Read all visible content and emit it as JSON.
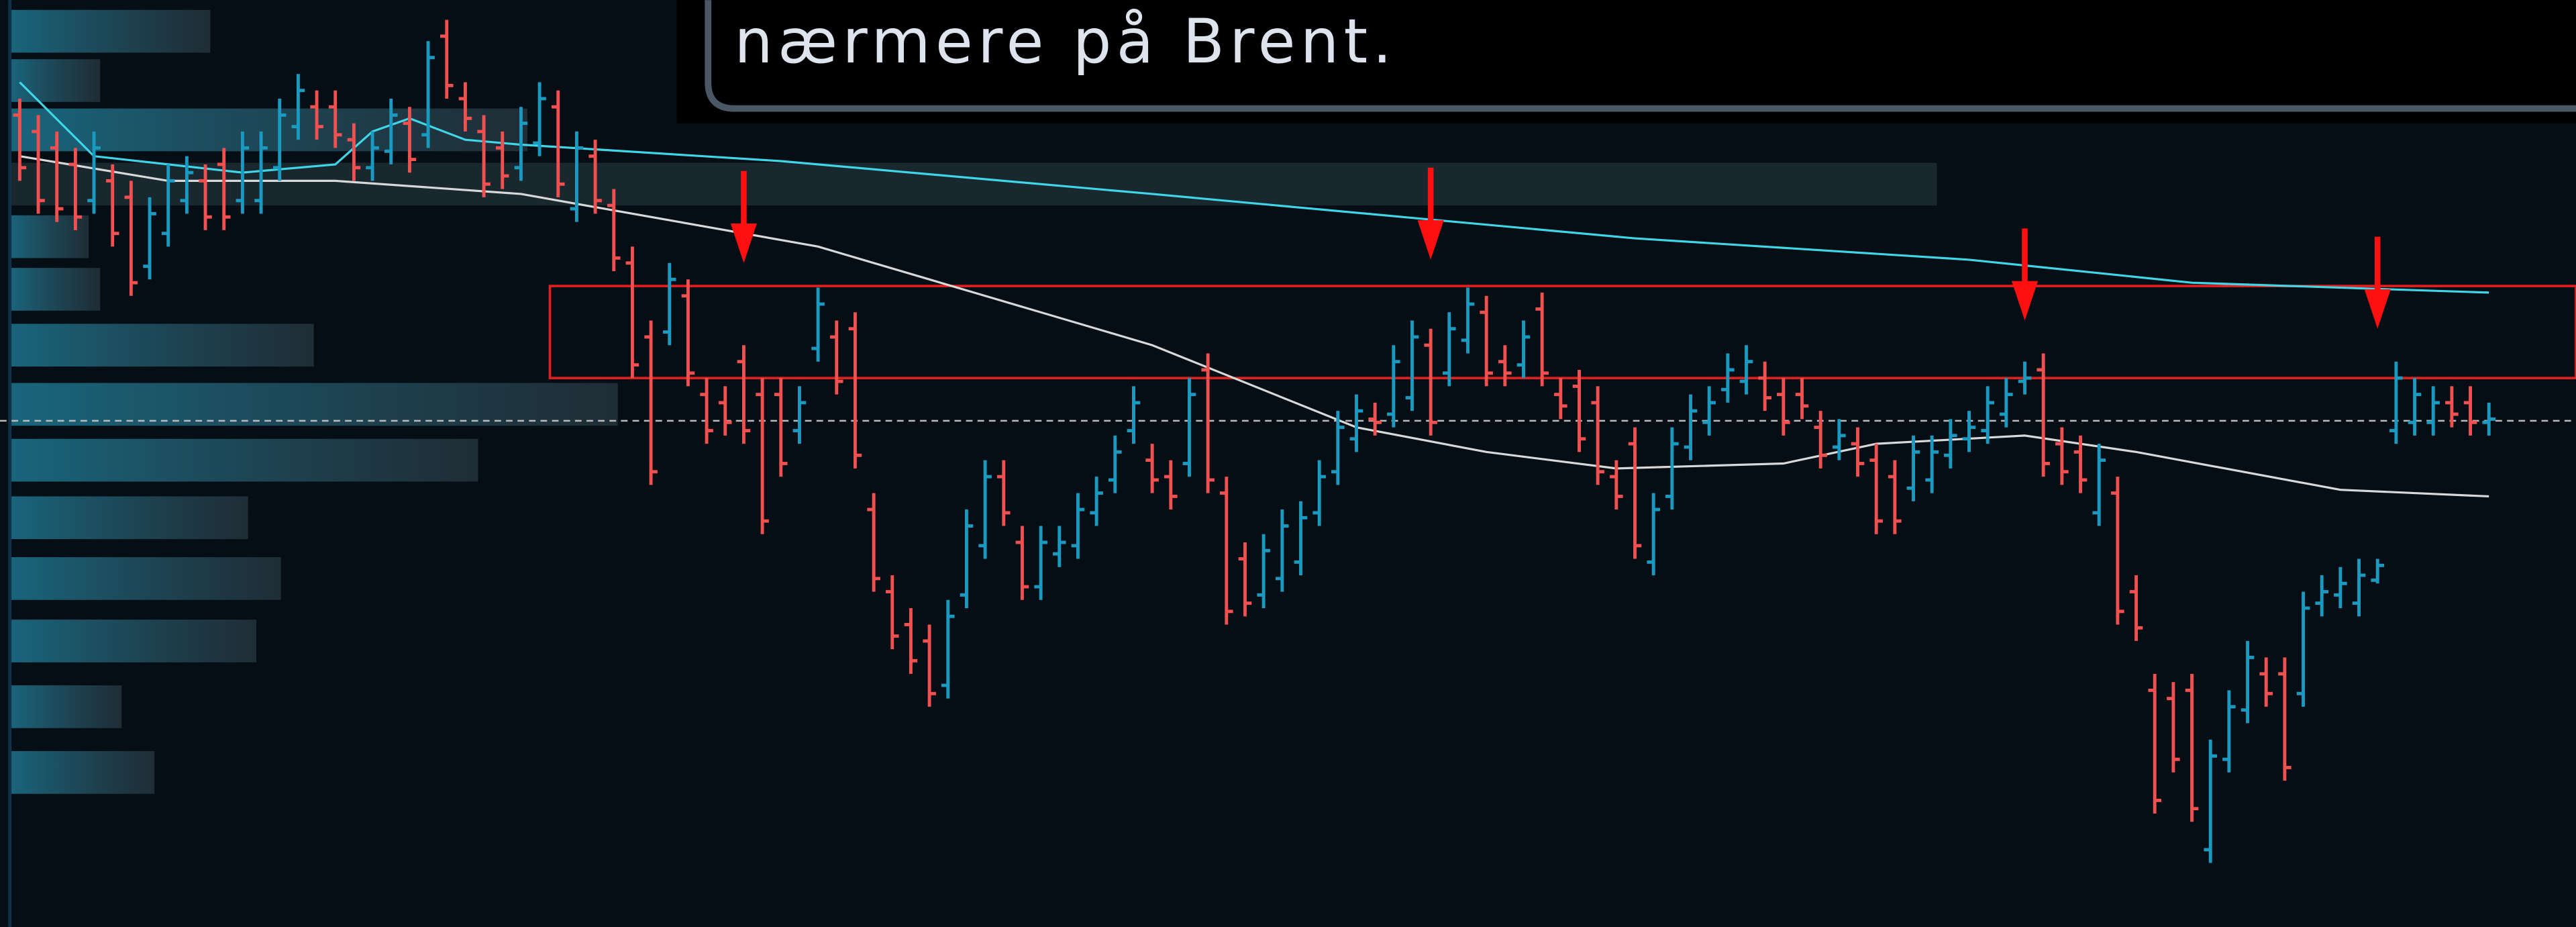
{
  "chart_data": {
    "type": "ohlc",
    "up_color": "#1a9ac0",
    "down_color": "#f05050",
    "ylim": [
      0,
      564
    ],
    "xlim": [
      0,
      133
    ],
    "open": [
      494,
      484,
      474,
      464,
      442,
      454,
      444,
      402,
      422,
      442,
      454,
      464,
      442,
      442,
      462,
      487,
      499,
      499,
      479,
      462,
      472,
      489,
      482,
      542,
      504,
      484,
      474,
      462,
      477,
      499,
      437,
      469,
      439,
      404,
      359,
      362,
      384,
      324,
      319,
      344,
      324,
      324,
      302,
      352,
      359,
      364,
      254,
      204,
      184,
      174,
      147,
      202,
      232,
      274,
      234,
      207,
      227,
      232,
      252,
      272,
      302,
      284,
      274,
      282,
      339,
      264,
      224,
      202,
      212,
      222,
      252,
      277,
      297,
      309,
      312,
      322,
      354,
      337,
      357,
      374,
      344,
      342,
      376,
      324,
      329,
      319,
      274,
      294,
      222,
      262,
      292,
      307,
      327,
      332,
      334,
      324,
      324,
      304,
      292,
      294,
      284,
      274,
      267,
      272,
      287,
      297,
      302,
      312,
      332,
      339,
      294,
      289,
      252,
      264,
      204,
      144,
      139,
      144,
      47,
      102,
      132,
      154,
      154,
      142,
      197,
      202,
      197,
      211,
      302,
      307,
      307,
      319,
      319,
      307
    ],
    "high": [
      504,
      494,
      484,
      474,
      484,
      464,
      454,
      444,
      464,
      469,
      464,
      474,
      484,
      484,
      504,
      519,
      509,
      509,
      489,
      484,
      504,
      499,
      539,
      552,
      514,
      494,
      484,
      499,
      514,
      509,
      484,
      479,
      449,
      414,
      369,
      404,
      394,
      334,
      329,
      354,
      334,
      334,
      329,
      389,
      369,
      374,
      264,
      214,
      194,
      184,
      199,
      254,
      284,
      284,
      244,
      244,
      244,
      264,
      274,
      299,
      329,
      294,
      284,
      334,
      349,
      274,
      234,
      239,
      254,
      259,
      284,
      314,
      324,
      319,
      354,
      369,
      364,
      374,
      389,
      384,
      354,
      369,
      386,
      334,
      339,
      329,
      284,
      304,
      264,
      304,
      324,
      329,
      349,
      354,
      344,
      334,
      334,
      314,
      309,
      304,
      294,
      284,
      299,
      299,
      309,
      314,
      329,
      334,
      344,
      349,
      304,
      299,
      294,
      274,
      214,
      154,
      149,
      154,
      114,
      144,
      174,
      164,
      164,
      204,
      214,
      219,
      224,
      224,
      344,
      334,
      329,
      329,
      329,
      319
    ],
    "low": [
      454,
      434,
      429,
      424,
      434,
      414,
      384,
      394,
      414,
      434,
      424,
      424,
      434,
      434,
      454,
      479,
      479,
      474,
      454,
      454,
      464,
      459,
      474,
      504,
      484,
      444,
      449,
      454,
      469,
      444,
      429,
      434,
      399,
      334,
      269,
      354,
      329,
      294,
      299,
      294,
      239,
      274,
      294,
      344,
      324,
      279,
      204,
      169,
      154,
      134,
      139,
      194,
      224,
      244,
      199,
      199,
      219,
      224,
      244,
      264,
      294,
      264,
      254,
      274,
      264,
      184,
      189,
      194,
      204,
      214,
      244,
      269,
      289,
      299,
      304,
      314,
      299,
      329,
      349,
      329,
      329,
      334,
      329,
      309,
      289,
      269,
      254,
      224,
      214,
      254,
      284,
      299,
      319,
      324,
      314,
      299,
      309,
      279,
      284,
      274,
      239,
      239,
      259,
      264,
      279,
      289,
      294,
      304,
      324,
      274,
      269,
      264,
      244,
      184,
      174,
      69,
      94,
      64,
      39,
      94,
      124,
      134,
      89,
      134,
      189,
      194,
      189,
      209,
      294,
      299,
      299,
      304,
      299,
      299
    ],
    "close": [
      462,
      442,
      437,
      432,
      474,
      422,
      392,
      434,
      454,
      459,
      432,
      432,
      474,
      474,
      494,
      509,
      487,
      482,
      462,
      474,
      494,
      467,
      529,
      512,
      492,
      452,
      457,
      489,
      504,
      452,
      474,
      442,
      407,
      342,
      277,
      394,
      337,
      302,
      307,
      302,
      247,
      282,
      319,
      379,
      332,
      287,
      212,
      177,
      162,
      142,
      189,
      244,
      274,
      252,
      207,
      234,
      234,
      254,
      264,
      289,
      319,
      272,
      262,
      324,
      272,
      192,
      197,
      229,
      244,
      249,
      274,
      304,
      314,
      307,
      344,
      359,
      307,
      364,
      379,
      337,
      337,
      359,
      337,
      317,
      297,
      277,
      262,
      232,
      254,
      294,
      314,
      319,
      339,
      344,
      322,
      307,
      317,
      287,
      299,
      282,
      247,
      247,
      289,
      289,
      299,
      304,
      319,
      324,
      334,
      282,
      277,
      272,
      284,
      192,
      182,
      77,
      102,
      72,
      104,
      134,
      164,
      142,
      97,
      194,
      204,
      209,
      214,
      220,
      334,
      324,
      319,
      312,
      307,
      309
    ],
    "moving_averages": [
      {
        "color": "#3fd6e8",
        "x": [
          0,
          4,
          12,
          17,
          19,
          21,
          24,
          27,
          41,
          61,
          87,
          105,
          117,
          133
        ],
        "values": [
          514,
          469,
          459,
          464,
          484,
          492,
          479,
          476,
          466,
          446,
          419,
          406,
          392,
          386
        ]
      },
      {
        "color": "#d8d8d8",
        "x": [
          0,
          8,
          17,
          27,
          43,
          52,
          61,
          72,
          79,
          86,
          95,
          100,
          108,
          114,
          125,
          133
        ],
        "values": [
          469,
          454,
          454,
          446,
          414,
          384,
          354,
          304,
          289,
          279,
          282,
          294,
          299,
          289,
          266,
          262
        ]
      }
    ],
    "zone": [
      334,
      390
    ],
    "zone_start": 29,
    "zone_color": "#e02020",
    "last_price_line": 308,
    "arrows": [
      {
        "x": 39,
        "value": 404
      },
      {
        "x": 76,
        "value": 406
      },
      {
        "x": 108,
        "value": 369
      },
      {
        "x": 127,
        "value": 364
      }
    ],
    "volume_profile": {
      "color": "#1a6a82",
      "price": [
        545,
        515,
        485,
        452,
        420,
        388,
        354,
        318,
        284,
        249,
        212,
        174,
        134,
        94
      ],
      "values": [
        122,
        55,
        315,
        1173,
        48,
        55,
        185,
        370,
        285,
        145,
        165,
        150,
        68,
        88
      ]
    }
  },
  "note": {
    "text": "nærmere på Brent."
  }
}
